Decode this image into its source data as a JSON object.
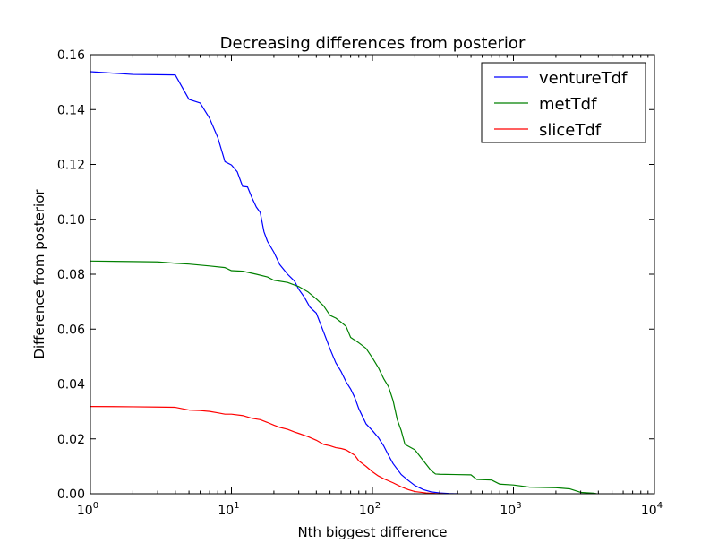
{
  "chart_data": {
    "type": "line",
    "title": "Decreasing differences from posterior",
    "xlabel": "Nth biggest difference",
    "ylabel": "Difference from posterior",
    "xscale": "log",
    "xlim": [
      1,
      10000
    ],
    "ylim": [
      0,
      0.16
    ],
    "grid": false,
    "legend_position": "top-right",
    "x_ticks": [
      {
        "value": 1,
        "base": "10",
        "exp": "0"
      },
      {
        "value": 10,
        "base": "10",
        "exp": "1"
      },
      {
        "value": 100,
        "base": "10",
        "exp": "2"
      },
      {
        "value": 1000,
        "base": "10",
        "exp": "3"
      },
      {
        "value": 10000,
        "base": "10",
        "exp": "4"
      }
    ],
    "y_ticks": [
      {
        "value": 0.0,
        "label": "0.00"
      },
      {
        "value": 0.02,
        "label": "0.02"
      },
      {
        "value": 0.04,
        "label": "0.04"
      },
      {
        "value": 0.06,
        "label": "0.06"
      },
      {
        "value": 0.08,
        "label": "0.08"
      },
      {
        "value": 0.1,
        "label": "0.10"
      },
      {
        "value": 0.12,
        "label": "0.12"
      },
      {
        "value": 0.14,
        "label": "0.14"
      },
      {
        "value": 0.16,
        "label": "0.16"
      }
    ],
    "series": [
      {
        "name": "ventureTdf",
        "color": "#0000ff",
        "points": [
          [
            1,
            0.1538
          ],
          [
            2,
            0.1528
          ],
          [
            3,
            0.1527
          ],
          [
            4,
            0.1526
          ],
          [
            5,
            0.1437
          ],
          [
            6,
            0.1424
          ],
          [
            7,
            0.1368
          ],
          [
            8,
            0.1298
          ],
          [
            9,
            0.121
          ],
          [
            10,
            0.1198
          ],
          [
            11,
            0.1173
          ],
          [
            12,
            0.112
          ],
          [
            13,
            0.1118
          ],
          [
            14,
            0.1078
          ],
          [
            15,
            0.1045
          ],
          [
            16,
            0.1025
          ],
          [
            17,
            0.0955
          ],
          [
            18,
            0.092
          ],
          [
            20,
            0.088
          ],
          [
            22,
            0.0835
          ],
          [
            25,
            0.08
          ],
          [
            28,
            0.0775
          ],
          [
            30,
            0.0745
          ],
          [
            33,
            0.0715
          ],
          [
            36,
            0.068
          ],
          [
            40,
            0.0658
          ],
          [
            45,
            0.059
          ],
          [
            50,
            0.0528
          ],
          [
            55,
            0.0477
          ],
          [
            60,
            0.0445
          ],
          [
            65,
            0.0408
          ],
          [
            70,
            0.0382
          ],
          [
            75,
            0.035
          ],
          [
            80,
            0.031
          ],
          [
            90,
            0.0255
          ],
          [
            100,
            0.023
          ],
          [
            110,
            0.0205
          ],
          [
            120,
            0.0175
          ],
          [
            130,
            0.014
          ],
          [
            140,
            0.011
          ],
          [
            160,
            0.007
          ],
          [
            180,
            0.0048
          ],
          [
            200,
            0.003
          ],
          [
            230,
            0.0015
          ],
          [
            260,
            0.0007
          ],
          [
            300,
            0.0003
          ],
          [
            350,
            0.0001
          ],
          [
            400,
            0.0
          ]
        ]
      },
      {
        "name": "metTdf",
        "color": "#008000",
        "points": [
          [
            1,
            0.0848
          ],
          [
            2,
            0.0846
          ],
          [
            3,
            0.0845
          ],
          [
            4,
            0.084
          ],
          [
            5,
            0.0837
          ],
          [
            7,
            0.083
          ],
          [
            9,
            0.0824
          ],
          [
            10,
            0.0813
          ],
          [
            12,
            0.0811
          ],
          [
            15,
            0.08
          ],
          [
            18,
            0.079
          ],
          [
            20,
            0.0778
          ],
          [
            25,
            0.077
          ],
          [
            30,
            0.0755
          ],
          [
            35,
            0.0735
          ],
          [
            40,
            0.071
          ],
          [
            45,
            0.0685
          ],
          [
            50,
            0.065
          ],
          [
            55,
            0.064
          ],
          [
            60,
            0.0625
          ],
          [
            65,
            0.061
          ],
          [
            70,
            0.057
          ],
          [
            80,
            0.055
          ],
          [
            90,
            0.053
          ],
          [
            100,
            0.0495
          ],
          [
            110,
            0.046
          ],
          [
            120,
            0.042
          ],
          [
            130,
            0.039
          ],
          [
            140,
            0.034
          ],
          [
            150,
            0.027
          ],
          [
            160,
            0.023
          ],
          [
            170,
            0.018
          ],
          [
            200,
            0.016
          ],
          [
            230,
            0.012
          ],
          [
            260,
            0.0085
          ],
          [
            280,
            0.0072
          ],
          [
            300,
            0.0071
          ],
          [
            500,
            0.0069
          ],
          [
            550,
            0.0052
          ],
          [
            700,
            0.005
          ],
          [
            800,
            0.0035
          ],
          [
            1000,
            0.0032
          ],
          [
            1300,
            0.0024
          ],
          [
            2000,
            0.0022
          ],
          [
            2500,
            0.0018
          ],
          [
            3000,
            0.0005
          ],
          [
            3700,
            0.0002
          ],
          [
            3900,
            0.0
          ]
        ]
      },
      {
        "name": "sliceTdf",
        "color": "#ff0000",
        "points": [
          [
            1,
            0.0318
          ],
          [
            2,
            0.0317
          ],
          [
            3,
            0.0316
          ],
          [
            4,
            0.0315
          ],
          [
            5,
            0.0305
          ],
          [
            6,
            0.0303
          ],
          [
            7,
            0.03
          ],
          [
            8,
            0.0295
          ],
          [
            9,
            0.029
          ],
          [
            10,
            0.029
          ],
          [
            12,
            0.0285
          ],
          [
            14,
            0.0275
          ],
          [
            16,
            0.027
          ],
          [
            18,
            0.026
          ],
          [
            20,
            0.025
          ],
          [
            22,
            0.0242
          ],
          [
            25,
            0.0235
          ],
          [
            28,
            0.0225
          ],
          [
            30,
            0.022
          ],
          [
            35,
            0.0208
          ],
          [
            40,
            0.0195
          ],
          [
            45,
            0.018
          ],
          [
            50,
            0.0175
          ],
          [
            55,
            0.0168
          ],
          [
            60,
            0.0165
          ],
          [
            65,
            0.016
          ],
          [
            70,
            0.015
          ],
          [
            75,
            0.014
          ],
          [
            80,
            0.012
          ],
          [
            90,
            0.01
          ],
          [
            100,
            0.008
          ],
          [
            110,
            0.0065
          ],
          [
            120,
            0.0055
          ],
          [
            140,
            0.004
          ],
          [
            160,
            0.0025
          ],
          [
            180,
            0.0015
          ],
          [
            200,
            0.0008
          ],
          [
            240,
            0.0003
          ],
          [
            280,
            0.0001
          ],
          [
            320,
            0.0
          ]
        ]
      }
    ]
  }
}
